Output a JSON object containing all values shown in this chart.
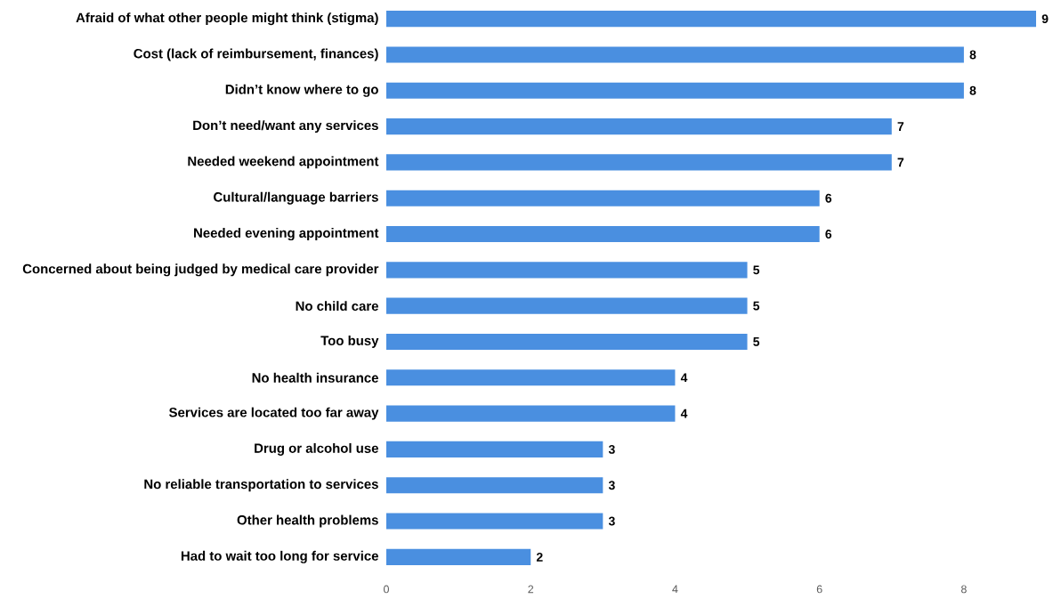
{
  "chart_data": {
    "type": "bar",
    "orientation": "horizontal",
    "categories": [
      "Afraid of what other people might think (stigma)",
      "Cost (lack of reimbursement, finances)",
      "Didn’t know where to go",
      "Don’t need/want any services",
      "Needed weekend appointment",
      "Cultural/language barriers",
      "Needed evening appointment",
      "Concerned about being judged by medical care provider",
      "No child care",
      "Too busy",
      "No health insurance",
      "Services are located too far away",
      "Drug or alcohol use",
      "No reliable transportation to services",
      "Other health problems",
      "Had to wait too long for service"
    ],
    "values": [
      9,
      8,
      8,
      7,
      7,
      6,
      6,
      5,
      5,
      5,
      4,
      4,
      3,
      3,
      3,
      2
    ],
    "color": "#4a8fe0",
    "xlim": [
      0,
      9
    ],
    "xticks": [
      0,
      2,
      4,
      6,
      8
    ],
    "data_labels": true
  }
}
